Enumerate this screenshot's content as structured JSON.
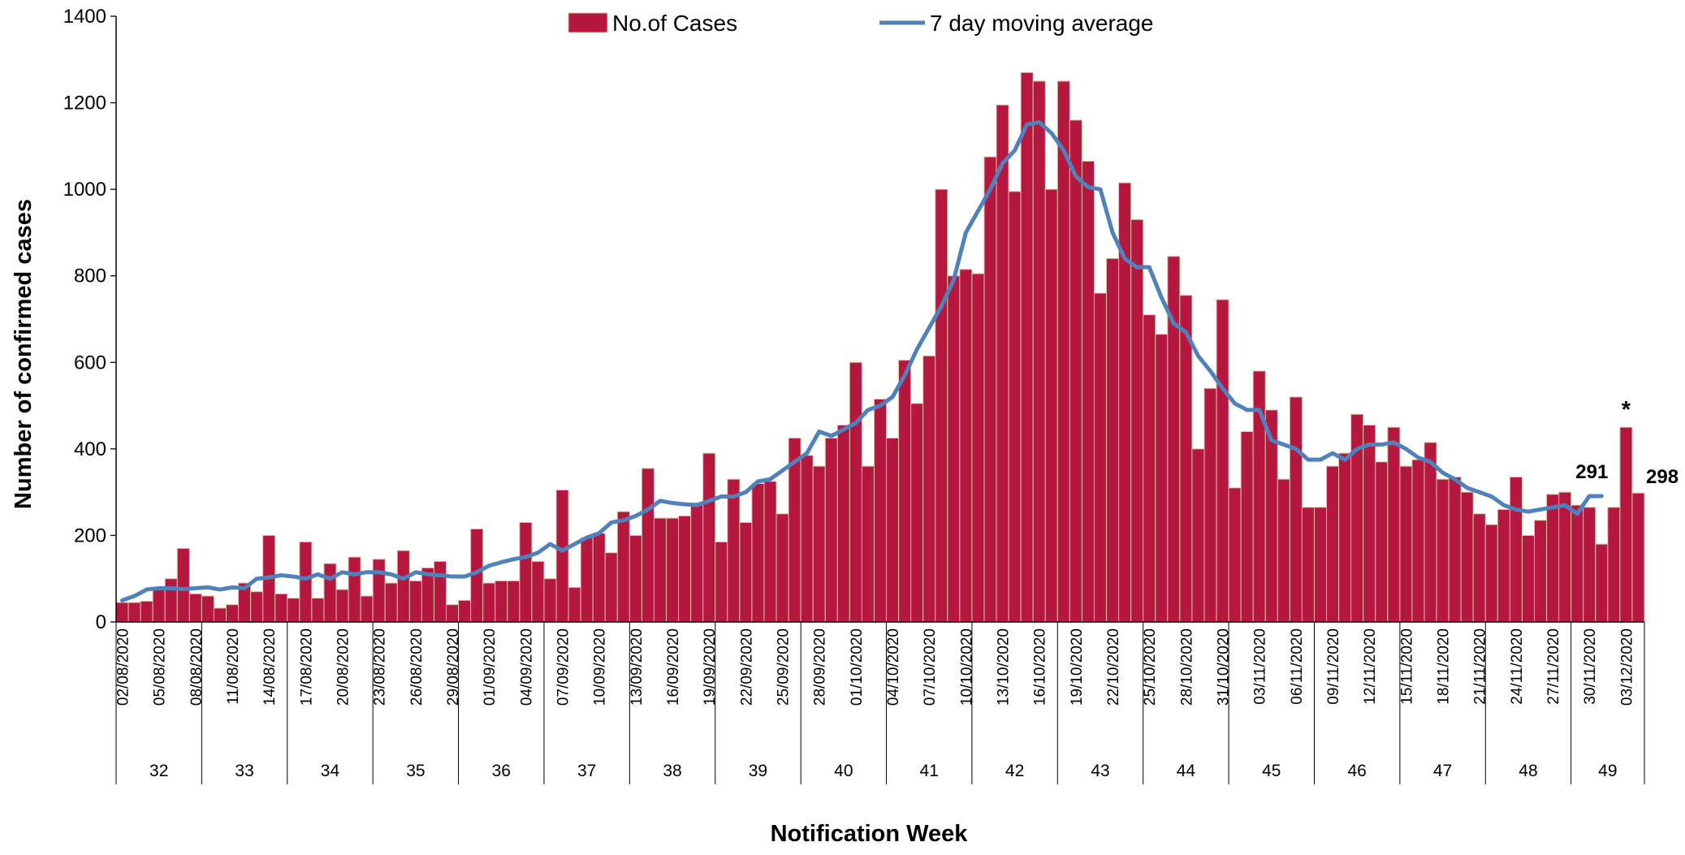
{
  "chart_data": {
    "type": "bar_line",
    "x_label": "Notification Week",
    "y_label": "Number of confirmed cases",
    "ylim": [
      0,
      1400
    ],
    "yticks": [
      0,
      200,
      400,
      600,
      800,
      1000,
      1200,
      1400
    ],
    "categories": [
      "02/08/2020",
      null,
      null,
      "05/08/2020",
      null,
      null,
      "08/08/2020",
      null,
      null,
      "11/08/2020",
      null,
      null,
      "14/08/2020",
      null,
      null,
      "17/08/2020",
      null,
      null,
      "20/08/2020",
      null,
      null,
      "23/08/2020",
      null,
      null,
      "26/08/2020",
      null,
      null,
      "29/08/2020",
      null,
      null,
      "01/09/2020",
      null,
      null,
      "04/09/2020",
      null,
      null,
      "07/09/2020",
      null,
      null,
      "10/09/2020",
      null,
      null,
      "13/09/2020",
      null,
      null,
      "16/09/2020",
      null,
      null,
      "19/09/2020",
      null,
      null,
      "22/09/2020",
      null,
      null,
      "25/09/2020",
      null,
      null,
      "28/09/2020",
      null,
      null,
      "01/10/2020",
      null,
      null,
      "04/10/2020",
      null,
      null,
      "07/10/2020",
      null,
      null,
      "10/10/2020",
      null,
      null,
      "13/10/2020",
      null,
      null,
      "16/10/2020",
      null,
      null,
      "19/10/2020",
      null,
      null,
      "22/10/2020",
      null,
      null,
      "25/10/2020",
      null,
      null,
      "28/10/2020",
      null,
      null,
      "31/10/2020",
      null,
      null,
      "03/11/2020",
      null,
      null,
      "06/11/2020",
      null,
      null,
      "09/11/2020",
      null,
      null,
      "12/11/2020",
      null,
      null,
      "15/11/2020",
      null,
      null,
      "18/11/2020",
      null,
      null,
      "21/11/2020",
      null,
      null,
      "24/11/2020",
      null,
      null,
      "27/11/2020",
      null,
      null,
      "30/11/2020",
      null,
      null,
      "03/12/2020",
      null
    ],
    "weeks": [
      "32",
      "33",
      "34",
      "35",
      "36",
      "37",
      "38",
      "39",
      "40",
      "41",
      "42",
      "43",
      "44",
      "45",
      "46",
      "47",
      "48",
      "49"
    ],
    "series": [
      {
        "name": "No.of Cases",
        "type": "bar",
        "color": "#b5173f",
        "edge_color": "#d8c3a5",
        "values": [
          45,
          45,
          48,
          75,
          100,
          170,
          65,
          60,
          32,
          40,
          90,
          70,
          200,
          65,
          55,
          185,
          55,
          135,
          75,
          150,
          60,
          145,
          90,
          165,
          95,
          125,
          140,
          40,
          50,
          215,
          90,
          95,
          95,
          230,
          140,
          100,
          305,
          80,
          195,
          205,
          160,
          255,
          200,
          355,
          240,
          240,
          245,
          275,
          390,
          185,
          330,
          230,
          320,
          325,
          250,
          425,
          385,
          360,
          425,
          455,
          600,
          360,
          515,
          425,
          605,
          505,
          615,
          1000,
          800,
          815,
          805,
          1075,
          1195,
          995,
          1270,
          1250,
          1000,
          1250,
          1160,
          1065,
          760,
          840,
          1015,
          930,
          710,
          665,
          845,
          755,
          400,
          540,
          745,
          310,
          440,
          580,
          490,
          330,
          520,
          265,
          265,
          360,
          390,
          480,
          455,
          370,
          450,
          360,
          375,
          415,
          330,
          335,
          300,
          250,
          225,
          260,
          335,
          200,
          235,
          295,
          300,
          270,
          265,
          180,
          265,
          450,
          298
        ]
      },
      {
        "name": "7 day moving average",
        "type": "line",
        "color": "#4f81bd",
        "values": [
          50,
          60,
          75,
          78,
          78,
          76,
          78,
          80,
          75,
          80,
          78,
          100,
          103,
          108,
          105,
          100,
          110,
          100,
          115,
          110,
          115,
          115,
          110,
          100,
          115,
          110,
          108,
          105,
          105,
          115,
          130,
          138,
          145,
          150,
          160,
          180,
          165,
          180,
          195,
          205,
          230,
          235,
          245,
          260,
          280,
          275,
          272,
          270,
          280,
          290,
          290,
          300,
          325,
          330,
          350,
          370,
          390,
          440,
          430,
          445,
          460,
          490,
          500,
          520,
          570,
          630,
          680,
          730,
          790,
          900,
          950,
          1000,
          1060,
          1090,
          1150,
          1155,
          1130,
          1090,
          1030,
          1005,
          1000,
          900,
          840,
          820,
          820,
          750,
          690,
          670,
          615,
          580,
          540,
          505,
          490,
          490,
          420,
          410,
          400,
          375,
          375,
          390,
          375,
          400,
          410,
          410,
          415,
          400,
          380,
          370,
          345,
          330,
          310,
          300,
          290,
          270,
          260,
          255,
          260,
          265,
          270,
          250,
          291,
          291,
          null,
          null,
          null
        ]
      }
    ],
    "labeled_points": [
      {
        "series": 1,
        "index": 121
      },
      {
        "series": 0,
        "index": 124
      }
    ],
    "annotations": [
      {
        "text": "*",
        "at": "03/12/2020"
      }
    ]
  }
}
